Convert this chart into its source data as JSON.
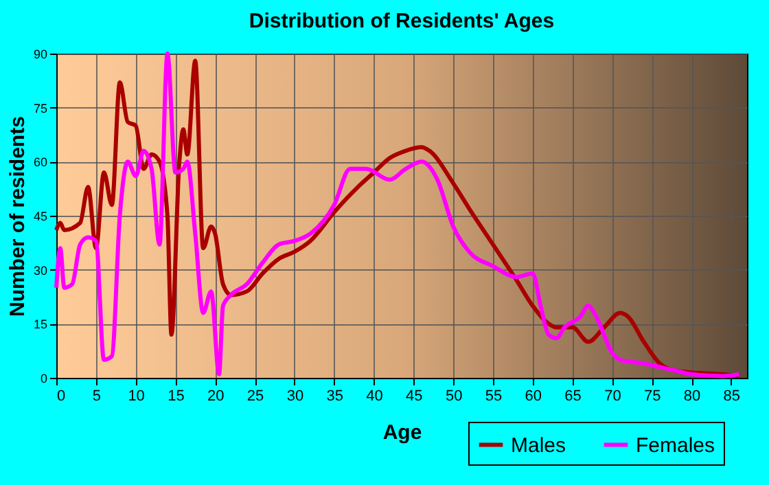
{
  "chart_data": {
    "type": "line",
    "title": "Distribution of Residents' Ages",
    "xlabel": "Age",
    "ylabel": "Number of residents",
    "xlim": [
      0,
      87
    ],
    "xticks": [
      0,
      5,
      10,
      15,
      20,
      25,
      30,
      35,
      40,
      45,
      50,
      55,
      60,
      65,
      70,
      75,
      80,
      85
    ],
    "ylim": [
      0,
      90
    ],
    "yticks": [
      0,
      15,
      30,
      45,
      60,
      75,
      90
    ],
    "grid": true,
    "legend": "bottom right",
    "marker": "none",
    "line_style": "solid",
    "series": [
      {
        "name": "Males",
        "color": "#aa0000",
        "x": [
          0,
          0.5,
          1,
          3,
          4,
          5,
          6,
          7,
          8,
          9,
          10,
          11,
          12,
          13,
          14,
          14.5,
          15.5,
          16,
          16.5,
          17.5,
          18.5,
          19.5,
          20,
          21,
          22,
          24,
          26,
          28,
          30,
          32,
          35,
          38,
          40,
          42,
          44,
          46,
          47,
          50,
          52,
          55,
          58,
          60,
          62,
          63,
          64,
          65,
          67,
          69,
          71,
          72,
          74,
          76,
          78,
          80,
          84,
          86
        ],
        "values": [
          41,
          43,
          41,
          43,
          53,
          36,
          57,
          48,
          82,
          71,
          70,
          58,
          62,
          60,
          45,
          12,
          60,
          69,
          62,
          88,
          36,
          42,
          40,
          26,
          23,
          24,
          29,
          33,
          35,
          38,
          46,
          53,
          57,
          61,
          63,
          64,
          63,
          54,
          47,
          37,
          27,
          20,
          15,
          14,
          14,
          14,
          10,
          14,
          18,
          17,
          10,
          4,
          2,
          1.5,
          1,
          0.5
        ]
      },
      {
        "name": "Females",
        "color": "#ff00ff",
        "x": [
          0,
          0.5,
          1,
          2,
          3,
          4,
          5,
          6,
          7,
          8,
          9,
          10,
          11,
          12,
          13,
          14,
          15,
          16,
          16.5,
          17.5,
          18.5,
          19.5,
          20.5,
          21,
          22,
          24,
          26,
          28,
          30,
          32,
          35,
          37,
          39,
          42,
          44,
          46,
          48,
          50,
          52,
          55,
          58,
          60,
          61,
          62,
          63,
          64,
          66,
          67,
          68,
          70,
          71,
          74,
          76,
          78,
          80,
          84,
          86
        ],
        "values": [
          25,
          36,
          25,
          26,
          37,
          39,
          38,
          5,
          6,
          45,
          60,
          56,
          63,
          58,
          37,
          90,
          57,
          58,
          60,
          40,
          18,
          24,
          1,
          20,
          23,
          26,
          32,
          37,
          38,
          40,
          48,
          58,
          58,
          55,
          58,
          60,
          55,
          42,
          35,
          31,
          28,
          29,
          20,
          12,
          11,
          14,
          17,
          20,
          17,
          7,
          5,
          4,
          3,
          2,
          1,
          0.5,
          1
        ]
      }
    ]
  }
}
